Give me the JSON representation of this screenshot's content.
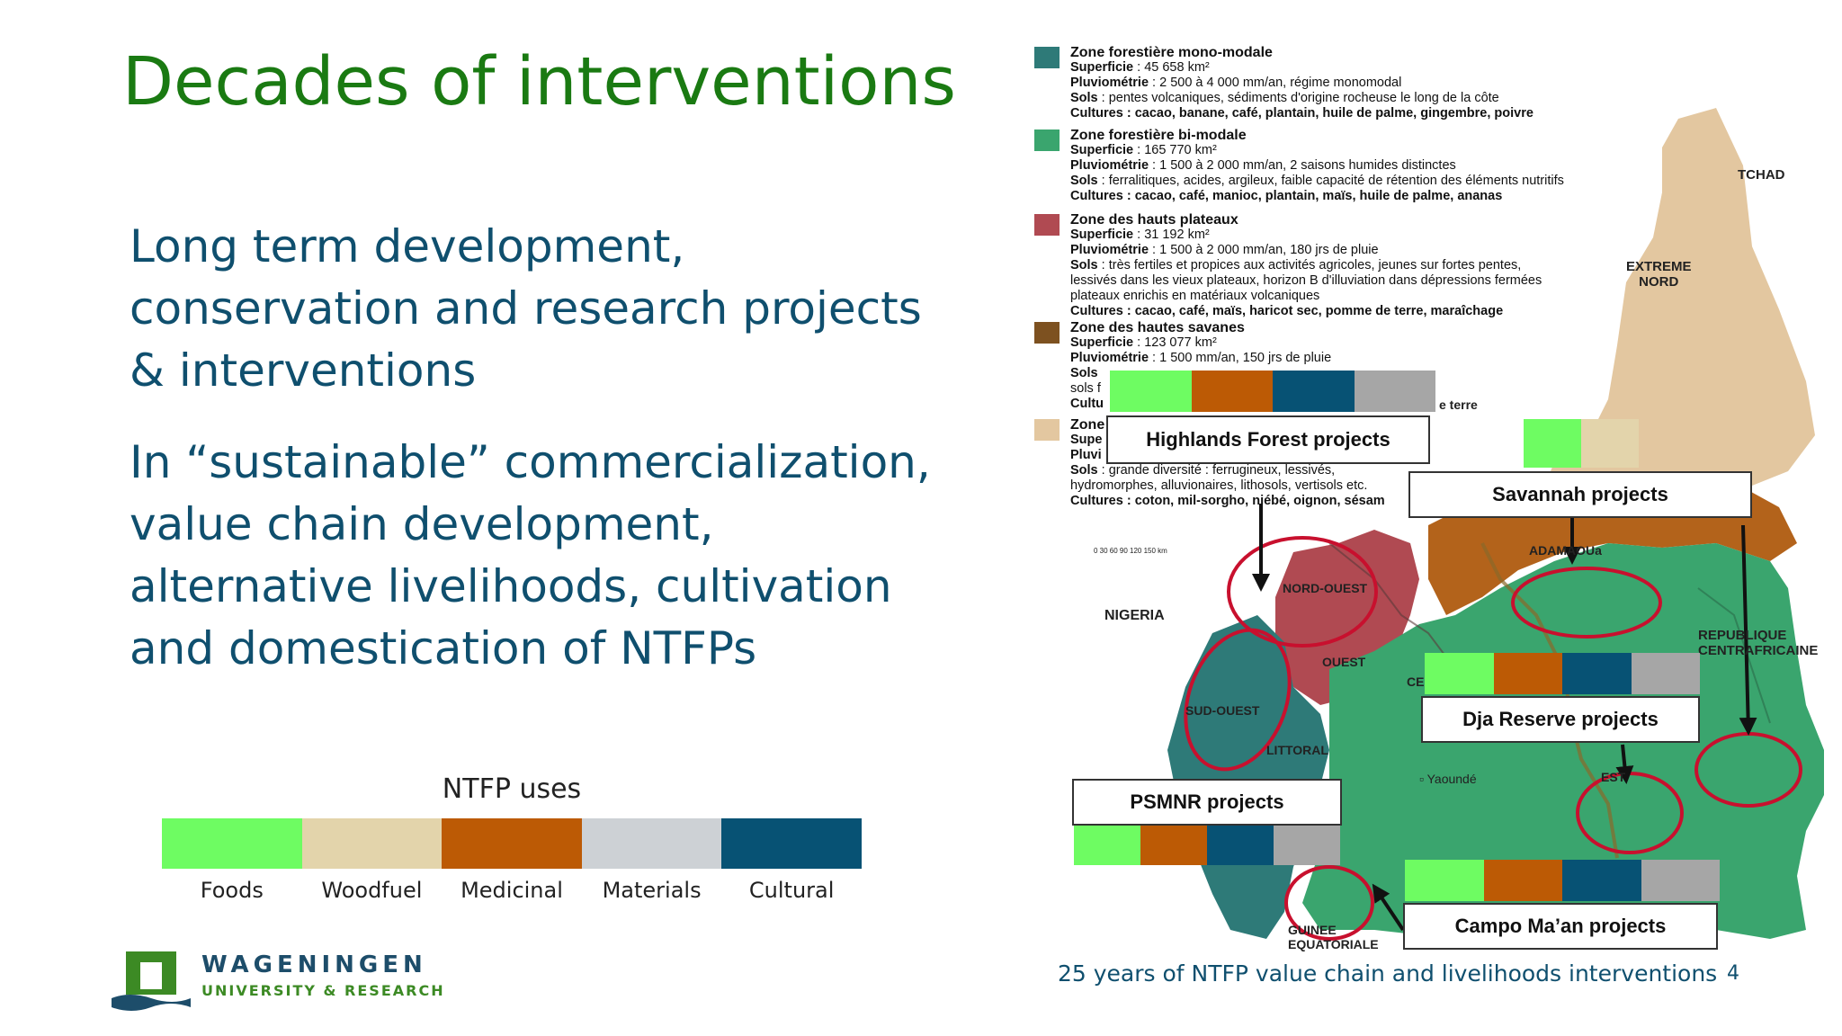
{
  "slide": {
    "title": "Decades of interventions",
    "paragraph1": [
      "Long term development,",
      "conservation and research projects",
      "& interventions"
    ],
    "paragraph2": [
      "In “sustainable” commercialization,",
      "value chain development,",
      "alternative livelihoods, cultivation",
      "and domestication of NTFPs"
    ],
    "footer": "25 years of NTFP value chain and livelihoods interventions",
    "page_number": "4"
  },
  "legend": {
    "title": "NTFP uses",
    "items": [
      {
        "label": "Foods",
        "color": "#6efc62"
      },
      {
        "label": "Woodfuel",
        "color": "#e3d4ab"
      },
      {
        "label": "Medicinal",
        "color": "#bc5a05"
      },
      {
        "label": "Materials",
        "color": "#cdd1d5"
      },
      {
        "label": "Cultural",
        "color": "#075274"
      }
    ]
  },
  "logo": {
    "line1": "WAGENINGEN",
    "line2": "UNIVERSITY & RESEARCH",
    "color": "#3c8a24"
  },
  "map": {
    "zones": [
      {
        "color": "#2e7a78",
        "title": "Zone forestière mono-modale",
        "lines": [
          {
            "k": "Superficie",
            "v": " : 45 658 km²"
          },
          {
            "k": "Pluviométrie",
            "v": " : 2 500 à 4 000 mm/an, régime monomodal"
          },
          {
            "k": "Sols",
            "v": " : pentes volcaniques, sédiments d'origine rocheuse le long de la côte"
          },
          {
            "k": "Cultures",
            "v": " : cacao, banane, café, plantain, huile de palme, gingembre, poivre"
          }
        ]
      },
      {
        "color": "#3aa56e",
        "title": "Zone forestière bi-modale",
        "lines": [
          {
            "k": "Superficie",
            "v": " : 165 770 km²"
          },
          {
            "k": "Pluviométrie",
            "v": " : 1 500 à 2 000 mm/an, 2 saisons humides distinctes"
          },
          {
            "k": "Sols",
            "v": " : ferralitiques, acides, argileux, faible capacité de rétention des éléments nutritifs"
          },
          {
            "k": "Cultures",
            "v": " : cacao, café, manioc, plantain, maïs, huile de palme, ananas"
          }
        ]
      },
      {
        "color": "#b04a52",
        "title": "Zone des hauts plateaux",
        "lines": [
          {
            "k": "Superficie",
            "v": " : 31 192 km²"
          },
          {
            "k": "Pluviométrie",
            "v": " : 1 500 à 2 000 mm/an, 180 jrs de pluie"
          },
          {
            "k": "Sols",
            "v": " : très fertiles et propices aux activités agricoles, jeunes sur fortes pentes,"
          },
          {
            "k": "",
            "v": "lessivés dans les vieux plateaux, horizon B d'illuviation dans dépressions fermées"
          },
          {
            "k": "",
            "v": "plateaux enrichis en matériaux volcaniques"
          },
          {
            "k": "Cultures",
            "v": " : cacao, café, maïs, haricot sec, pomme de terre, maraîchage"
          }
        ]
      },
      {
        "color": "#7d5120",
        "title": "Zone des hautes savanes",
        "lines": [
          {
            "k": "Superficie",
            "v": " : 123 077 km²"
          },
          {
            "k": "Pluviométrie",
            "v": " : 1 500 mm/an, 150 jrs de pluie"
          },
          {
            "k": "Sols",
            "v": ""
          },
          {
            "k": "",
            "v": "sols f"
          },
          {
            "k": "Cultu",
            "v": ""
          }
        ]
      },
      {
        "color": "#e3c7a0",
        "title": "Zone",
        "lines": [
          {
            "k": "Supe",
            "v": ""
          },
          {
            "k": "Pluvi",
            "v": ""
          },
          {
            "k": "Sols",
            "v": " : grande diversité : ferrugineux, lessivés,"
          },
          {
            "k": "",
            "v": "hydromorphes, alluvionaires, lithosols, vertisols etc."
          },
          {
            "k": "Cultures",
            "v": " : coton, mil-sorgho, niébé, oignon, sésam"
          }
        ]
      }
    ],
    "labels": {
      "tchad": "TCHAD",
      "extreme_nord": [
        "EXTREME",
        "NORD"
      ],
      "nigeria": "NIGERIA",
      "nord_ouest": "NORD-OUEST",
      "ouest": "OUEST",
      "sud_ouest": "SUD-OUEST",
      "littoral": "LITTORAL",
      "adamaoua": "ADAMAOUa",
      "rca": [
        "REPUBLIQUE",
        "CENTRAFRICAINE"
      ],
      "yaounde": "Yaoundé",
      "est": "EST",
      "ce": "CE",
      "guinee": [
        "GUINEE",
        "EQUATORIALE"
      ],
      "terre": "e terre",
      "scale": "0   30   60   90  120  150 km"
    },
    "projects": [
      {
        "id": "highlands",
        "label": "Highlands Forest projects"
      },
      {
        "id": "savannah",
        "label": "Savannah projects"
      },
      {
        "id": "dja",
        "label": "Dja Reserve projects"
      },
      {
        "id": "psmnr",
        "label": "PSMNR projects"
      },
      {
        "id": "campo",
        "label": "Campo Ma’an projects"
      }
    ]
  }
}
